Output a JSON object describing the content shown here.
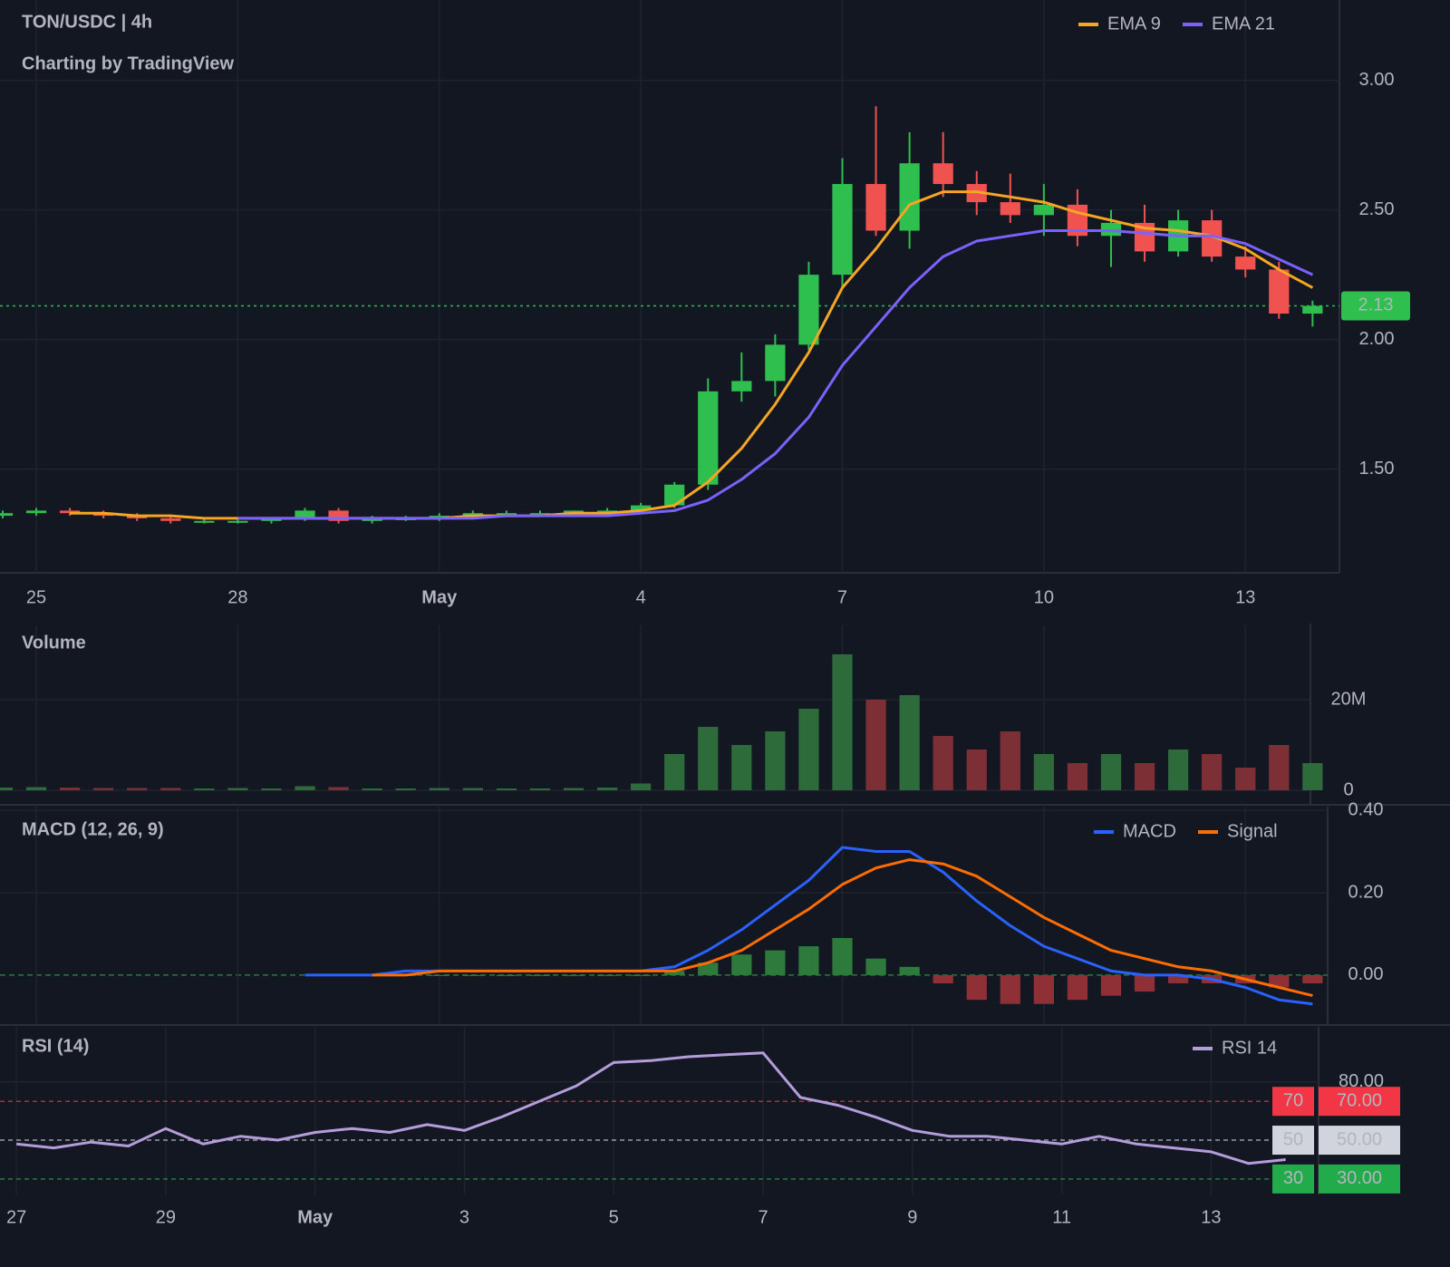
{
  "chart_data": [
    {
      "type": "candlestick",
      "title": "TON/USDC | 4h",
      "subtitle": "Charting by TradingView",
      "x": [
        24.5,
        25,
        25.5,
        26,
        26.5,
        27,
        27.5,
        28,
        28.5,
        29,
        29.5,
        30,
        30.5,
        31,
        31.5,
        32,
        32.5,
        33,
        33.5,
        34,
        34.5,
        35,
        35.5,
        36,
        36.5,
        37,
        37.5,
        38,
        38.5,
        39,
        39.5,
        40,
        40.5,
        41,
        41.5,
        42,
        42.5,
        43,
        43.5,
        44
      ],
      "open": [
        1.32,
        1.33,
        1.34,
        1.33,
        1.32,
        1.31,
        1.3,
        1.3,
        1.3,
        1.31,
        1.34,
        1.3,
        1.31,
        1.31,
        1.32,
        1.33,
        1.33,
        1.33,
        1.34,
        1.34,
        1.36,
        1.44,
        1.8,
        1.84,
        1.98,
        2.25,
        2.6,
        2.42,
        2.68,
        2.6,
        2.53,
        2.48,
        2.52,
        2.4,
        2.45,
        2.34,
        2.46,
        2.32,
        2.27,
        2.1
      ],
      "high": [
        1.34,
        1.35,
        1.35,
        1.34,
        1.33,
        1.32,
        1.31,
        1.31,
        1.31,
        1.35,
        1.35,
        1.32,
        1.32,
        1.33,
        1.34,
        1.34,
        1.34,
        1.34,
        1.35,
        1.37,
        1.45,
        1.85,
        1.95,
        2.02,
        2.3,
        2.7,
        2.9,
        2.8,
        2.8,
        2.65,
        2.64,
        2.6,
        2.58,
        2.5,
        2.52,
        2.5,
        2.5,
        2.36,
        2.3,
        2.15
      ],
      "low": [
        1.31,
        1.32,
        1.32,
        1.31,
        1.3,
        1.29,
        1.29,
        1.29,
        1.29,
        1.3,
        1.29,
        1.29,
        1.3,
        1.3,
        1.31,
        1.32,
        1.32,
        1.32,
        1.33,
        1.33,
        1.35,
        1.42,
        1.76,
        1.78,
        1.96,
        2.2,
        2.4,
        2.35,
        2.55,
        2.48,
        2.45,
        2.4,
        2.36,
        2.28,
        2.3,
        2.32,
        2.3,
        2.24,
        2.08,
        2.05
      ],
      "close": [
        1.33,
        1.34,
        1.33,
        1.32,
        1.31,
        1.3,
        1.3,
        1.3,
        1.31,
        1.34,
        1.3,
        1.31,
        1.31,
        1.32,
        1.33,
        1.33,
        1.33,
        1.34,
        1.34,
        1.36,
        1.44,
        1.8,
        1.84,
        1.98,
        2.25,
        2.6,
        2.42,
        2.68,
        2.6,
        2.53,
        2.48,
        2.52,
        2.4,
        2.45,
        2.34,
        2.46,
        2.32,
        2.27,
        2.1,
        2.13
      ],
      "up_color": "#2fbf4f",
      "down_color": "#f0524f",
      "series": [
        {
          "name": "EMA 9",
          "color": "#f5a623",
          "values": [
            null,
            null,
            1.33,
            1.33,
            1.32,
            1.32,
            1.31,
            1.31,
            1.31,
            1.31,
            1.31,
            1.31,
            1.31,
            1.31,
            1.32,
            1.32,
            1.32,
            1.33,
            1.33,
            1.34,
            1.36,
            1.45,
            1.58,
            1.75,
            1.95,
            2.2,
            2.35,
            2.52,
            2.57,
            2.57,
            2.55,
            2.53,
            2.49,
            2.46,
            2.43,
            2.42,
            2.4,
            2.35,
            2.27,
            2.2
          ]
        },
        {
          "name": "EMA 21",
          "color": "#7b61ff",
          "values": [
            null,
            null,
            null,
            null,
            null,
            null,
            null,
            1.31,
            1.31,
            1.31,
            1.31,
            1.31,
            1.31,
            1.31,
            1.31,
            1.32,
            1.32,
            1.32,
            1.32,
            1.33,
            1.34,
            1.38,
            1.46,
            1.56,
            1.7,
            1.9,
            2.05,
            2.2,
            2.32,
            2.38,
            2.4,
            2.42,
            2.42,
            2.42,
            2.41,
            2.4,
            2.4,
            2.37,
            2.31,
            2.25
          ]
        }
      ],
      "last_price": 2.13,
      "last_price_color": "#2fbf4f",
      "xlim": [
        24.46,
        44.4
      ],
      "ylim": [
        1.1,
        3.31
      ],
      "xticks": [
        25,
        28,
        {
          "value": 31,
          "label": "May"
        },
        {
          "value": 34,
          "label": "4"
        },
        {
          "value": 37,
          "label": "7"
        },
        {
          "value": 40,
          "label": "10"
        },
        {
          "value": 43,
          "label": "13"
        }
      ],
      "yticks": [
        {
          "value": 1.5,
          "label": "1.50"
        },
        {
          "value": 2,
          "label": "2.00"
        },
        {
          "value": 2.5,
          "label": "2.50"
        },
        {
          "value": 3,
          "label": "3.00"
        }
      ],
      "grid": true
    },
    {
      "type": "volume",
      "title": "Volume",
      "x": [
        24.5,
        25,
        25.5,
        26,
        26.5,
        27,
        27.5,
        28,
        28.5,
        29,
        29.5,
        30,
        30.5,
        31,
        31.5,
        32,
        32.5,
        33,
        33.5,
        34,
        34.5,
        35,
        35.5,
        36,
        36.5,
        37,
        37.5,
        38,
        38.5,
        39,
        39.5,
        40,
        40.5,
        41,
        41.5,
        42,
        42.5,
        43,
        43.5,
        44
      ],
      "values": [
        600000,
        700000,
        600000,
        500000,
        500000,
        500000,
        400000,
        500000,
        400000,
        900000,
        700000,
        400000,
        400000,
        500000,
        500000,
        400000,
        400000,
        500000,
        600000,
        1500000,
        8000000,
        14000000,
        10000000,
        13000000,
        18000000,
        30000000,
        20000000,
        21000000,
        12000000,
        9000000,
        13000000,
        8000000,
        6000000,
        8000000,
        6000000,
        9000000,
        8000000,
        5000000,
        10000000,
        6000000
      ],
      "up_color": "#2d6b3a",
      "down_color": "#7c3036",
      "xlim": [
        24.46,
        44.4
      ],
      "ylim": [
        0,
        36400000
      ],
      "yticks": [
        0,
        {
          "value": 20000000,
          "label": "20M"
        }
      ],
      "grid": true
    },
    {
      "type": "macd",
      "title": "MACD (12, 26, 9)",
      "x": [
        24.5,
        25,
        25.5,
        26,
        26.5,
        27,
        27.5,
        28,
        28.5,
        29,
        29.5,
        30,
        30.5,
        31,
        31.5,
        32,
        32.5,
        33,
        33.5,
        34,
        34.5,
        35,
        35.5,
        36,
        36.5,
        37,
        37.5,
        38,
        38.5,
        39,
        39.5,
        40,
        40.5,
        41,
        41.5,
        42,
        42.5,
        43,
        43.5,
        44
      ],
      "series": [
        {
          "name": "MACD",
          "color": "#2962ff",
          "values": [
            null,
            null,
            null,
            null,
            null,
            null,
            null,
            null,
            null,
            0,
            0,
            0,
            0.01,
            0.01,
            0.01,
            0.01,
            0.01,
            0.01,
            0.01,
            0.01,
            0.02,
            0.06,
            0.11,
            0.17,
            0.23,
            0.31,
            0.3,
            0.3,
            0.25,
            0.18,
            0.12,
            0.07,
            0.04,
            0.01,
            0.0,
            0.0,
            -0.01,
            -0.03,
            -0.06,
            -0.07
          ]
        },
        {
          "name": "Signal",
          "color": "#ff6d00",
          "values": [
            null,
            null,
            null,
            null,
            null,
            null,
            null,
            null,
            null,
            null,
            null,
            0,
            0,
            0.01,
            0.01,
            0.01,
            0.01,
            0.01,
            0.01,
            0.01,
            0.01,
            0.03,
            0.06,
            0.11,
            0.16,
            0.22,
            0.26,
            0.28,
            0.27,
            0.24,
            0.19,
            0.14,
            0.1,
            0.06,
            0.04,
            0.02,
            0.01,
            -0.01,
            -0.03,
            -0.05
          ]
        }
      ],
      "histogram": [
        null,
        null,
        null,
        null,
        null,
        null,
        null,
        null,
        null,
        null,
        null,
        0,
        0,
        0,
        0,
        0,
        0,
        0,
        0,
        0,
        0.01,
        0.03,
        0.05,
        0.06,
        0.07,
        0.09,
        0.04,
        0.02,
        -0.02,
        -0.06,
        -0.07,
        -0.07,
        -0.06,
        -0.05,
        -0.04,
        -0.02,
        -0.02,
        -0.02,
        -0.03,
        -0.02
      ],
      "positive_color": "#2d7a3c",
      "negative_color": "#8e3036",
      "xlim": [
        24.46,
        44.4
      ],
      "ylim": [
        -0.119,
        0.409
      ],
      "yticks": [
        {
          "value": 0,
          "label": "0.00"
        },
        {
          "value": 0.2,
          "label": "0.20"
        },
        {
          "value": 0.4,
          "label": "0.40"
        }
      ],
      "grid": true
    },
    {
      "type": "rsi",
      "title": "RSI (14)",
      "x": [
        27,
        27.5,
        28,
        28.5,
        29,
        29.5,
        30,
        30.5,
        31,
        31.5,
        32,
        32.5,
        33,
        33.5,
        34,
        34.5,
        35,
        35.5,
        36,
        36.5,
        37,
        37.5,
        38,
        38.5,
        39,
        39.5,
        40,
        40.5,
        41,
        41.5,
        42,
        42.5,
        43,
        43.5,
        44
      ],
      "series": [
        {
          "name": "RSI 14",
          "color": "#b39ddb",
          "values": [
            48,
            46,
            49,
            47,
            56,
            48,
            52,
            50,
            54,
            56,
            54,
            58,
            55,
            62,
            70,
            78,
            90,
            91,
            93,
            94,
            95,
            72,
            68,
            62,
            55,
            52,
            52,
            50,
            48,
            52,
            48,
            46,
            44,
            38,
            40
          ]
        }
      ],
      "levels": [
        {
          "value": 70,
          "label": "70",
          "axis_label": "70.00",
          "color": "#f23645"
        },
        {
          "value": 50,
          "label": "50",
          "axis_label": "50.00",
          "color": "#d1d4dc"
        },
        {
          "value": 30,
          "label": "30",
          "axis_label": "30.00",
          "color": "#22ab4a"
        }
      ],
      "xlim": [
        26.78,
        44.44
      ],
      "ylim": [
        22,
        108.4
      ],
      "xticks": [
        27,
        29,
        {
          "value": 31,
          "label": "May"
        },
        {
          "value": 33,
          "label": "3"
        },
        {
          "value": 35,
          "label": "5"
        },
        {
          "value": 37,
          "label": "7"
        },
        {
          "value": 39,
          "label": "9"
        },
        {
          "value": 41,
          "label": "11"
        },
        {
          "value": 43,
          "label": "13"
        }
      ],
      "yticks": [
        {
          "value": 80,
          "label": "80.00"
        }
      ],
      "grid": true
    }
  ]
}
